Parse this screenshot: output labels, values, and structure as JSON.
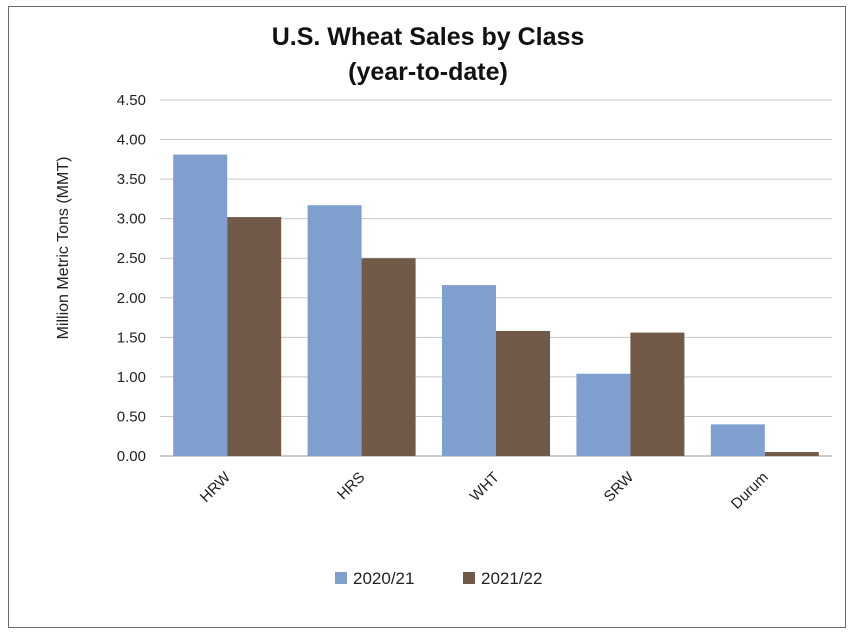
{
  "chart_data": {
    "type": "bar",
    "title": "U.S. Wheat Sales by Class",
    "subtitle": "(year-to-date)",
    "ylabel": "Million Metric Tons (MMT)",
    "xlabel": "",
    "categories": [
      "HRW",
      "HRS",
      "WHT",
      "SRW",
      "Durum"
    ],
    "series": [
      {
        "name": "2020/21",
        "color": "#7f9fcf",
        "values": [
          3.81,
          3.17,
          2.16,
          1.04,
          0.4
        ]
      },
      {
        "name": "2021/22",
        "color": "#715a47",
        "values": [
          3.02,
          2.5,
          1.58,
          1.56,
          0.05
        ]
      }
    ],
    "ylim": [
      0,
      4.5
    ],
    "yticks": [
      "0.00",
      "0.50",
      "1.00",
      "1.50",
      "2.00",
      "2.50",
      "3.00",
      "3.50",
      "4.00",
      "4.50"
    ],
    "grid": true,
    "legend": "bottom"
  }
}
